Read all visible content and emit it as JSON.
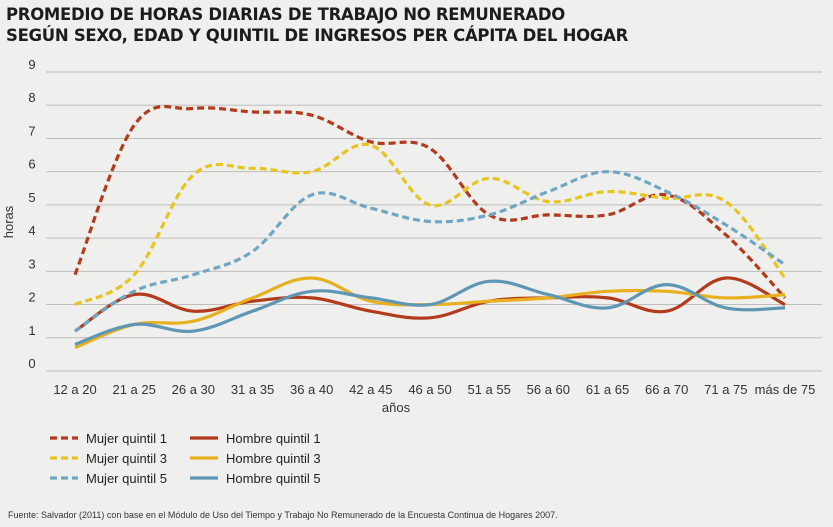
{
  "title_lines": [
    "PROMEDIO DE HORAS DIARIAS DE TRABAJO NO REMUNERADO",
    "SEGÚN SEXO, EDAD Y QUINTIL DE INGRESOS PER CÁPITA DEL HOGAR"
  ],
  "source": "Fuente: Salvador (2011) con base en el Módulo de Uso del Tiempo y Trabajo No Remunerado de la Encuesta Continua de Hogares 2007.",
  "colors": {
    "mujer_q1": "#b33a1b",
    "hombre_q1": "#b33a1b",
    "mujer_q3": "#e8c41e",
    "hombre_q3": "#e8b01e",
    "mujer_q5": "#6fa6c6",
    "hombre_q5": "#5e96b6",
    "grid": "#bdbdbd",
    "background": "#efefed"
  },
  "chart_data": {
    "type": "line",
    "xlabel": "años",
    "ylabel": "horas",
    "ylim": [
      0,
      9
    ],
    "yticks": [
      0,
      1,
      2,
      3,
      4,
      5,
      6,
      7,
      8,
      9
    ],
    "grid": true,
    "legend_position": "bottom-left",
    "categories": [
      "12 a 20",
      "21 a 25",
      "26 a 30",
      "31 a 35",
      "36 a 40",
      "42 a 45",
      "46 a 50",
      "51 a 55",
      "56 a 60",
      "61 a 65",
      "66 a 70",
      "71 a 75",
      "más de 75"
    ],
    "series": [
      {
        "name": "Mujer quintil 1",
        "style": "dashed",
        "color_key": "mujer_q1",
        "values": [
          2.9,
          7.4,
          7.9,
          7.8,
          7.7,
          6.9,
          6.7,
          4.7,
          4.7,
          4.7,
          5.3,
          4.1,
          2.2
        ]
      },
      {
        "name": "Hombre quintil 1",
        "style": "solid",
        "color_key": "hombre_q1",
        "values": [
          1.2,
          2.3,
          1.8,
          2.1,
          2.2,
          1.8,
          1.6,
          2.1,
          2.2,
          2.2,
          1.8,
          2.8,
          2.0
        ]
      },
      {
        "name": "Mujer quintil 3",
        "style": "dashed",
        "color_key": "mujer_q3",
        "values": [
          2.0,
          2.9,
          5.9,
          6.1,
          6.0,
          6.8,
          5.0,
          5.8,
          5.1,
          5.4,
          5.2,
          5.1,
          2.8
        ]
      },
      {
        "name": "Hombre quintil 3",
        "style": "solid",
        "color_key": "hombre_q3",
        "values": [
          0.7,
          1.4,
          1.5,
          2.2,
          2.8,
          2.1,
          2.0,
          2.1,
          2.2,
          2.4,
          2.4,
          2.2,
          2.3
        ]
      },
      {
        "name": "Mujer quintil 5",
        "style": "dashed",
        "color_key": "mujer_q5",
        "values": [
          1.2,
          2.4,
          2.9,
          3.6,
          5.3,
          4.9,
          4.5,
          4.7,
          5.4,
          6.0,
          5.4,
          4.4,
          3.2
        ]
      },
      {
        "name": "Hombre quintil 5",
        "style": "solid",
        "color_key": "hombre_q5",
        "values": [
          0.8,
          1.4,
          1.2,
          1.8,
          2.4,
          2.2,
          2.0,
          2.7,
          2.3,
          1.9,
          2.6,
          1.9,
          1.9
        ]
      }
    ]
  }
}
